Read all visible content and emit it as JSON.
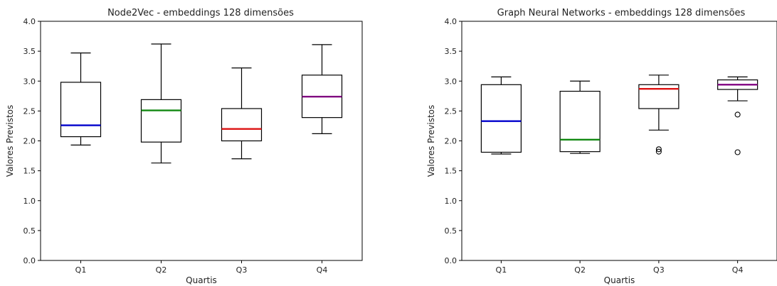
{
  "chart_data": [
    {
      "type": "box",
      "title": "Node2Vec - embeddings 128 dimensões",
      "xlabel": "Quartis",
      "ylabel": "Valores Previstos",
      "ylim": [
        0,
        4
      ],
      "yticks": [
        "0.0",
        "0.5",
        "1.0",
        "1.5",
        "2.0",
        "2.5",
        "3.0",
        "3.5",
        "4.0"
      ],
      "categories": [
        "Q1",
        "Q2",
        "Q3",
        "Q4"
      ],
      "grid": false,
      "boxes": [
        {
          "category": "Q1",
          "whislo": 1.93,
          "q1": 2.07,
          "med": 2.26,
          "q3": 2.98,
          "whishi": 3.47,
          "fliers": [],
          "color": "#0000cc"
        },
        {
          "category": "Q2",
          "whislo": 1.63,
          "q1": 1.98,
          "med": 2.51,
          "q3": 2.69,
          "whishi": 3.62,
          "fliers": [],
          "color": "#118811"
        },
        {
          "category": "Q3",
          "whislo": 1.7,
          "q1": 2.0,
          "med": 2.2,
          "q3": 2.54,
          "whishi": 3.22,
          "fliers": [],
          "color": "#dd1111"
        },
        {
          "category": "Q4",
          "whislo": 2.12,
          "q1": 2.39,
          "med": 2.74,
          "q3": 3.1,
          "whishi": 3.61,
          "fliers": [],
          "color": "#800080"
        }
      ]
    },
    {
      "type": "box",
      "title": "Graph Neural Networks - embeddings 128 dimensões",
      "xlabel": "Quartis",
      "ylabel": "Valores Previstos",
      "ylim": [
        0,
        4
      ],
      "yticks": [
        "0.0",
        "0.5",
        "1.0",
        "1.5",
        "2.0",
        "2.5",
        "3.0",
        "3.5",
        "4.0"
      ],
      "categories": [
        "Q1",
        "Q2",
        "Q3",
        "Q4"
      ],
      "grid": false,
      "boxes": [
        {
          "category": "Q1",
          "whislo": 1.78,
          "q1": 1.81,
          "med": 2.33,
          "q3": 2.94,
          "whishi": 3.07,
          "fliers": [],
          "color": "#0000cc"
        },
        {
          "category": "Q2",
          "whislo": 1.79,
          "q1": 1.82,
          "med": 2.02,
          "q3": 2.83,
          "whishi": 3.0,
          "fliers": [],
          "color": "#118811"
        },
        {
          "category": "Q3",
          "whislo": 2.18,
          "q1": 2.54,
          "med": 2.87,
          "q3": 2.94,
          "whishi": 3.1,
          "fliers": [
            1.86,
            1.82
          ],
          "color": "#dd1111"
        },
        {
          "category": "Q4",
          "whislo": 2.67,
          "q1": 2.86,
          "med": 2.94,
          "q3": 3.02,
          "whishi": 3.07,
          "fliers": [
            2.44,
            1.81
          ],
          "color": "#800080"
        }
      ]
    }
  ]
}
